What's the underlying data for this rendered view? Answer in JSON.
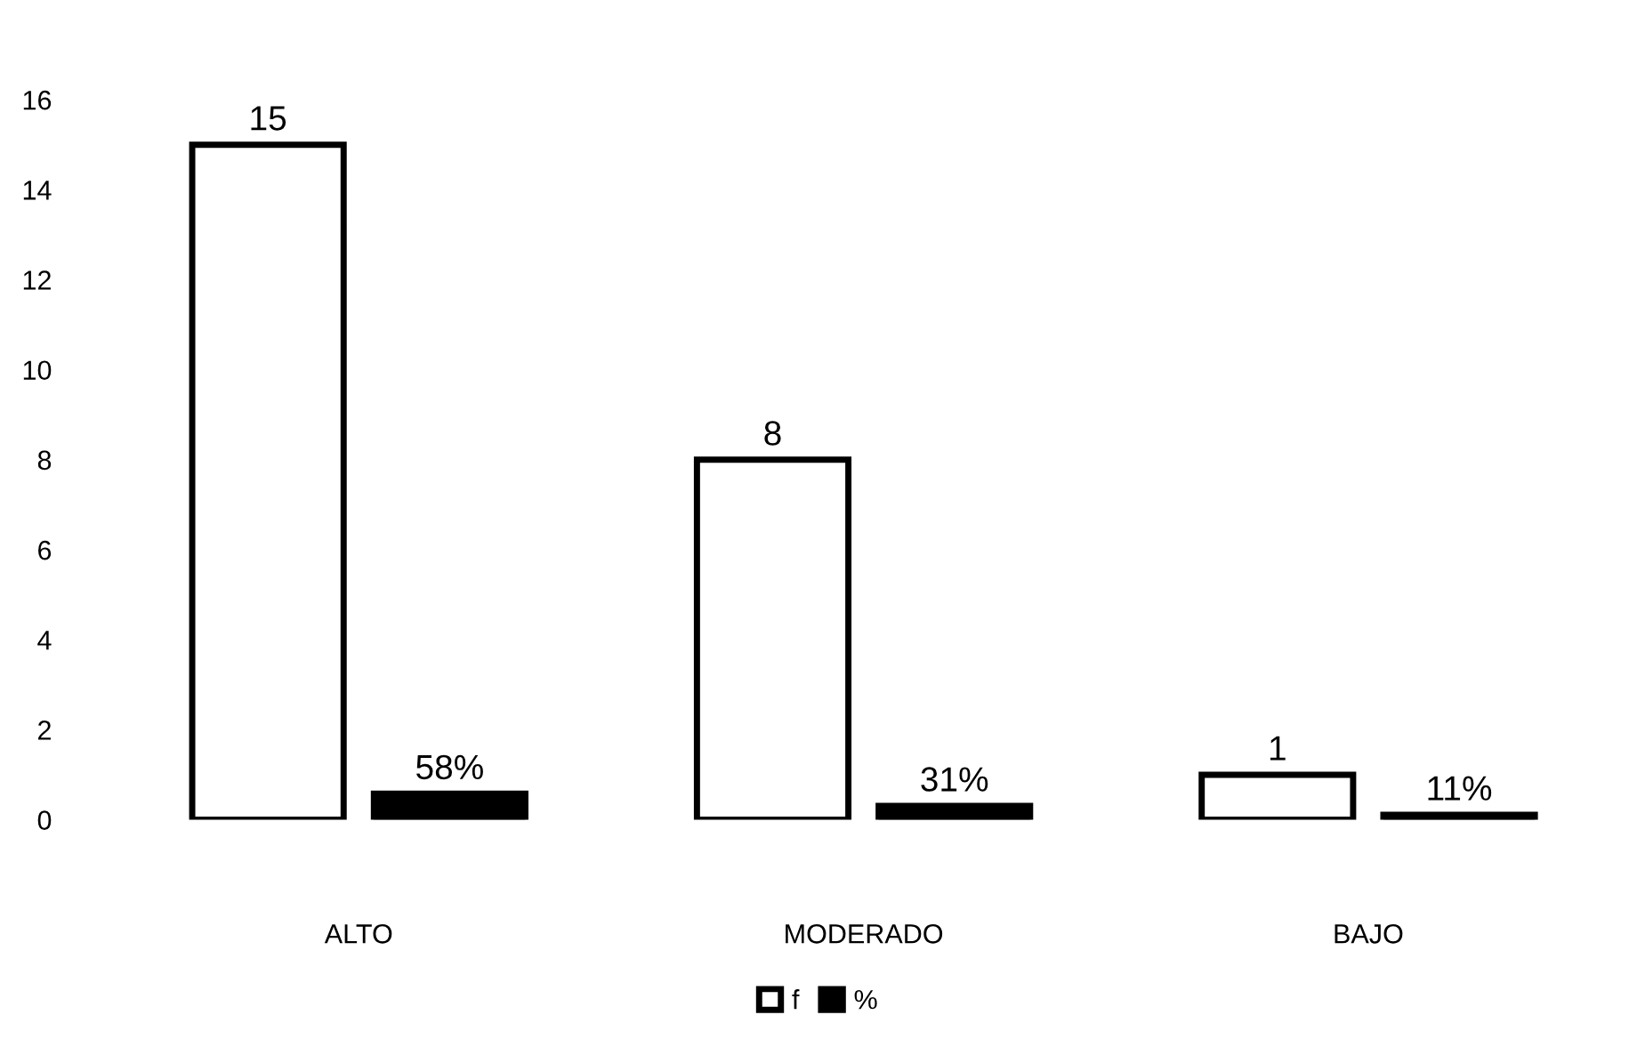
{
  "chart_data": {
    "type": "bar",
    "categories": [
      "ALTO",
      "MODERADO",
      "BAJO"
    ],
    "series": [
      {
        "name": "f",
        "color": "#ffffff",
        "values": [
          15,
          8,
          1
        ],
        "value_labels": [
          "15",
          "8",
          "1"
        ]
      },
      {
        "name": "%",
        "color": "#000000",
        "values": [
          0.58,
          0.31,
          0.11
        ],
        "value_labels": [
          "58%",
          "31%",
          "11%"
        ]
      }
    ],
    "ylim": [
      0,
      16
    ],
    "yticks": [
      0,
      2,
      4,
      6,
      8,
      10,
      12,
      14,
      16
    ],
    "grid": false,
    "legend": "bottom"
  }
}
